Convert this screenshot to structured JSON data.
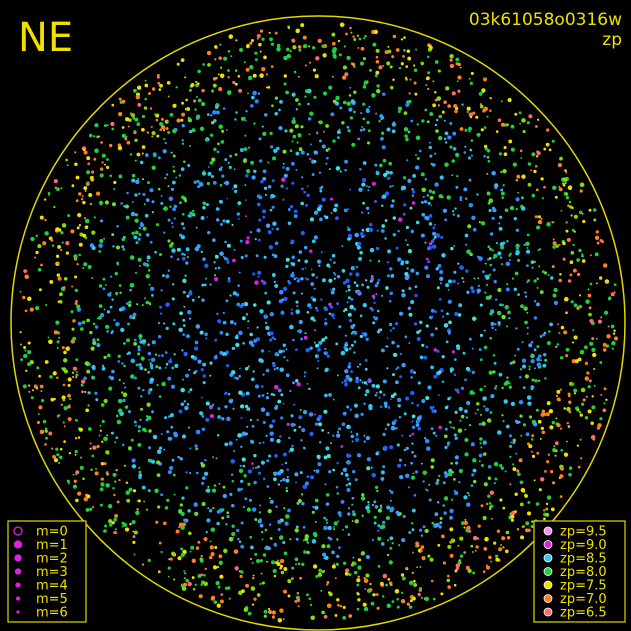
{
  "header": {
    "title": "NE",
    "frame_id": "03k61058o0316w",
    "mode": "zp"
  },
  "legend_m": {
    "items": [
      "m=0",
      "m=1",
      "m=2",
      "m=3",
      "m=4",
      "m=5",
      "m=6"
    ],
    "color": "#e020e0"
  },
  "legend_zp": {
    "items": [
      {
        "label": "zp=9.5",
        "color": "#ff88ff"
      },
      {
        "label": "zp=9.0",
        "color": "#e020e0"
      },
      {
        "label": "zp=8.5",
        "color": "#30c8f0"
      },
      {
        "label": "zp=8.0",
        "color": "#20d040"
      },
      {
        "label": "zp=7.5",
        "color": "#f0e000"
      },
      {
        "label": "zp=7.0",
        "color": "#ff8020"
      },
      {
        "label": "zp=6.5",
        "color": "#ff6a6a"
      }
    ]
  }
}
